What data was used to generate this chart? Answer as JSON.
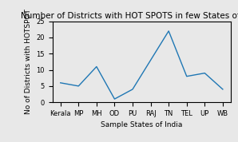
{
  "title": "Number of Districts with HOT SPOTS in few States of India",
  "xlabel": "Sample States of India",
  "ylabel": "No of Districts with HOTSPOT",
  "categories": [
    "Kerala",
    "MP",
    "MH",
    "OD",
    "PU",
    "RAJ",
    "TN",
    "TEL",
    "UP",
    "WB"
  ],
  "values": [
    6,
    5,
    11,
    1,
    4,
    13,
    22,
    8,
    9,
    4
  ],
  "line_color": "#1f77b4",
  "ylim": [
    0,
    25
  ],
  "background_color": "#e8e8e8",
  "title_fontsize": 7.5,
  "label_fontsize": 6.5,
  "tick_fontsize": 6
}
